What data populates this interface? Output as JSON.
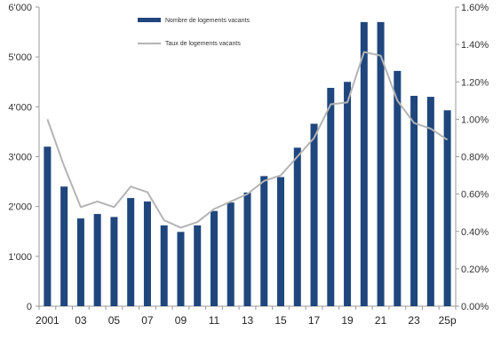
{
  "chart_data": {
    "type": "bar+line",
    "categories": [
      "2001",
      "02",
      "03",
      "04",
      "05",
      "06",
      "07",
      "08",
      "09",
      "10",
      "11",
      "12",
      "13",
      "14",
      "15",
      "16",
      "17",
      "18",
      "19",
      "20",
      "21",
      "22",
      "23",
      "24",
      "25p"
    ],
    "x_tick_labels_shown": [
      "2001",
      "03",
      "05",
      "07",
      "09",
      "11",
      "13",
      "15",
      "17",
      "19",
      "21",
      "23",
      "25p"
    ],
    "series": [
      {
        "name": "Nombre de logements vacants",
        "type": "bar",
        "axis": "left",
        "values": [
          3200,
          2400,
          1760,
          1850,
          1790,
          2170,
          2100,
          1620,
          1490,
          1620,
          1910,
          2080,
          2280,
          2610,
          2590,
          3180,
          3660,
          4380,
          4500,
          5700,
          5700,
          4720,
          4220,
          4200,
          3930
        ]
      },
      {
        "name": "Taux de logements vacants",
        "type": "line",
        "axis": "right",
        "values": [
          1.0,
          0.75,
          0.53,
          0.56,
          0.53,
          0.64,
          0.61,
          0.46,
          0.42,
          0.45,
          0.52,
          0.56,
          0.6,
          0.67,
          0.7,
          0.8,
          0.9,
          1.08,
          1.09,
          1.36,
          1.34,
          1.1,
          0.98,
          0.95,
          0.89
        ]
      }
    ],
    "y_left": {
      "ylim": [
        0,
        6000
      ],
      "ticks": [
        "0",
        "1'000",
        "2'000",
        "3'000",
        "4'000",
        "5'000",
        "6'000"
      ]
    },
    "y_right": {
      "ylim": [
        0,
        1.6
      ],
      "ticks": [
        "0.00%",
        "0.20%",
        "0.40%",
        "0.60%",
        "0.80%",
        "1.00%",
        "1.20%",
        "1.40%",
        "1.60%"
      ]
    },
    "legend_placement": "top-center",
    "grid": false
  },
  "colors": {
    "bar": "#1f467d",
    "line": "#b4b4b4",
    "axis": "#9a9a9a",
    "text": "#333333"
  }
}
